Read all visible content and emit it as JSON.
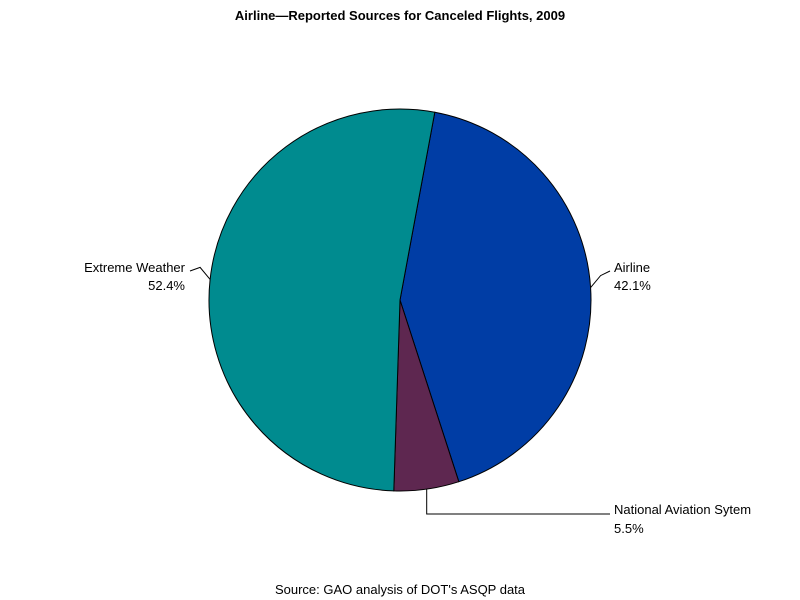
{
  "chart_data": {
    "type": "pie",
    "title": "Airline—Reported Sources for Canceled Flights, 2009",
    "footnote": "Source: GAO analysis of DOT's ASQP data",
    "slices": [
      {
        "label": "Airline",
        "value": 42.1,
        "display": "42.1%",
        "color": "#003DA5"
      },
      {
        "label": "National Aviation Sytem",
        "value": 5.5,
        "display": "5.5%",
        "color": "#5E2750"
      },
      {
        "label": "Extreme Weather",
        "value": 52.4,
        "display": "52.4%",
        "color": "#008B8F"
      }
    ]
  }
}
